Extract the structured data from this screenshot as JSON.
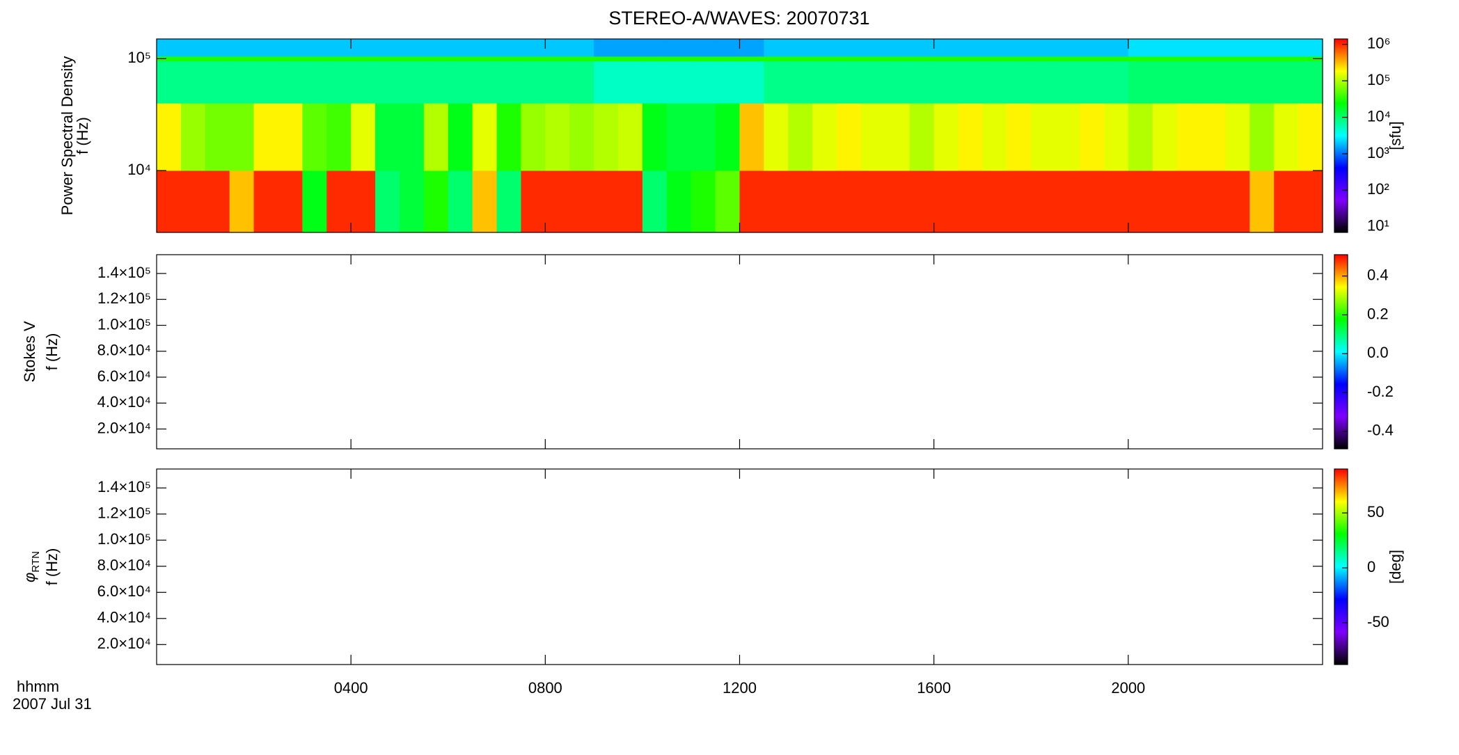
{
  "title": "STEREO-A/WAVES: 20070731",
  "time_label": "hhmm",
  "date_label": "2007 Jul 31",
  "xlim": [
    0,
    24
  ],
  "xticks": [
    {
      "value": 4,
      "label": "0400"
    },
    {
      "value": 8,
      "label": "0800"
    },
    {
      "value": 12,
      "label": "1200"
    },
    {
      "value": 16,
      "label": "1600"
    },
    {
      "value": 20,
      "label": "2000"
    }
  ],
  "colormap": [
    "#000000",
    "#7f00ff",
    "#0000ff",
    "#00ffff",
    "#00ff00",
    "#ffff00",
    "#ff0000"
  ],
  "chart_data": [
    {
      "type": "heatmap",
      "ylabel": "Power Spectral Density",
      "yunit": "f (Hz)",
      "ylog": true,
      "ylim": [
        2800,
        150000
      ],
      "yticks": [
        {
          "value": 10000,
          "label": "10⁴"
        },
        {
          "value": 100000,
          "label": "10⁵"
        }
      ],
      "x": [
        0,
        0.5,
        1,
        1.5,
        2,
        2.5,
        3,
        3.5,
        4,
        4.5,
        5,
        5.5,
        6,
        6.5,
        7,
        7.5,
        8,
        8.5,
        9,
        9.5,
        10,
        10.5,
        11,
        11.5,
        12,
        12.5,
        13,
        13.5,
        14,
        14.5,
        15,
        15.5,
        16,
        16.5,
        17,
        17.5,
        18,
        18.5,
        19,
        19.5,
        20,
        20.5,
        21,
        21.5,
        22,
        22.5,
        23,
        23.5
      ],
      "y_edges": [
        2800,
        10000,
        40000,
        95000,
        105000,
        150000
      ],
      "z": [
        [
          1000000,
          1000000,
          1000000,
          300000,
          1000000,
          1000000,
          20000,
          1000000,
          1000000,
          10000,
          15000,
          30000,
          10000,
          300000,
          10000,
          1000000,
          1000000,
          1000000,
          1000000,
          1000000,
          10000,
          20000,
          30000,
          50000,
          1000000,
          1000000,
          1000000,
          1000000,
          1000000,
          1000000,
          1000000,
          1000000,
          1000000,
          1000000,
          1000000,
          1000000,
          1000000,
          1000000,
          1000000,
          1000000,
          1000000,
          1000000,
          1000000,
          1000000,
          1000000,
          300000,
          1000000,
          1000000
        ],
        [
          200000,
          80000,
          60000,
          60000,
          200000,
          200000,
          50000,
          40000,
          150000,
          15000,
          15000,
          100000,
          20000,
          150000,
          30000,
          80000,
          100000,
          80000,
          100000,
          120000,
          20000,
          15000,
          15000,
          20000,
          300000,
          150000,
          100000,
          150000,
          200000,
          150000,
          150000,
          100000,
          150000,
          200000,
          150000,
          200000,
          150000,
          150000,
          200000,
          150000,
          100000,
          150000,
          200000,
          200000,
          150000,
          80000,
          150000,
          200000
        ],
        [
          8000,
          8000,
          8000,
          8000,
          8000,
          8000,
          8000,
          8000,
          8000,
          8000,
          8000,
          8000,
          8000,
          8000,
          8000,
          8000,
          8000,
          8000,
          5000,
          5000,
          5000,
          5000,
          5000,
          5000,
          5000,
          8000,
          8000,
          8000,
          8000,
          8000,
          8000,
          8000,
          8000,
          8000,
          8000,
          8000,
          8000,
          8000,
          8000,
          8000,
          10000,
          10000,
          10000,
          10000,
          10000,
          10000,
          10000,
          10000
        ],
        [
          30000,
          30000,
          30000,
          30000,
          30000,
          30000,
          30000,
          30000,
          30000,
          30000,
          30000,
          30000,
          30000,
          30000,
          30000,
          30000,
          30000,
          30000,
          30000,
          30000,
          30000,
          30000,
          30000,
          30000,
          30000,
          30000,
          30000,
          30000,
          30000,
          30000,
          30000,
          30000,
          30000,
          30000,
          30000,
          30000,
          30000,
          30000,
          30000,
          30000,
          30000,
          30000,
          30000,
          30000,
          30000,
          30000,
          30000,
          30000
        ],
        [
          2000,
          2000,
          2000,
          2000,
          2000,
          2000,
          2000,
          2000,
          2000,
          2000,
          2000,
          2000,
          2000,
          2000,
          2000,
          2000,
          2000,
          2000,
          1500,
          1500,
          1500,
          1500,
          1500,
          1500,
          1500,
          2000,
          2000,
          2000,
          2000,
          2000,
          2000,
          2000,
          2000,
          2000,
          2000,
          2000,
          2000,
          2000,
          2000,
          2000,
          2500,
          2500,
          2500,
          2500,
          2500,
          2500,
          2500,
          2500
        ]
      ],
      "colorbar": {
        "label": "[sfu]",
        "log": true,
        "clim": [
          7,
          1400000
        ],
        "ticks": [
          {
            "value": 10,
            "label": "10¹"
          },
          {
            "value": 100,
            "label": "10²"
          },
          {
            "value": 1000,
            "label": "10³"
          },
          {
            "value": 10000,
            "label": "10⁴"
          },
          {
            "value": 100000,
            "label": "10⁵"
          },
          {
            "value": 1000000,
            "label": "10⁶"
          }
        ]
      }
    },
    {
      "type": "heatmap",
      "ylabel": "Stokes V",
      "yunit": "f (Hz)",
      "ylog": false,
      "ylim": [
        4700,
        154500
      ],
      "yticks": [
        {
          "value": 20000,
          "label": "2.0×10⁴"
        },
        {
          "value": 40000,
          "label": "4.0×10⁴"
        },
        {
          "value": 60000,
          "label": "6.0×10⁴"
        },
        {
          "value": 80000,
          "label": "8.0×10⁴"
        },
        {
          "value": 100000,
          "label": "1.0×10⁵"
        },
        {
          "value": 120000,
          "label": "1.2×10⁵"
        },
        {
          "value": 140000,
          "label": "1.4×10⁵"
        }
      ],
      "colorbar": {
        "log": false,
        "clim": [
          -0.49,
          0.51
        ],
        "ticks": [
          -0.4,
          -0.2,
          {
            "value": 0,
            "label": "0.0"
          },
          0.2,
          0.4
        ]
      }
    },
    {
      "type": "heatmap",
      "ylabel": {
        "symbol": "φ",
        "subscript": "RTN"
      },
      "yunit": "f (Hz)",
      "ylog": false,
      "ylim": [
        4700,
        154500
      ],
      "yticks": [
        {
          "value": 20000,
          "label": "2.0×10⁴"
        },
        {
          "value": 40000,
          "label": "4.0×10⁴"
        },
        {
          "value": 60000,
          "label": "6.0×10⁴"
        },
        {
          "value": 80000,
          "label": "8.0×10⁴"
        },
        {
          "value": 100000,
          "label": "1.0×10⁵"
        },
        {
          "value": 120000,
          "label": "1.2×10⁵"
        },
        {
          "value": 140000,
          "label": "1.4×10⁵"
        }
      ],
      "colorbar": {
        "label": "[deg]",
        "log": false,
        "clim": [
          -88,
          90
        ],
        "ticks": [
          -50,
          0,
          50
        ]
      }
    }
  ]
}
